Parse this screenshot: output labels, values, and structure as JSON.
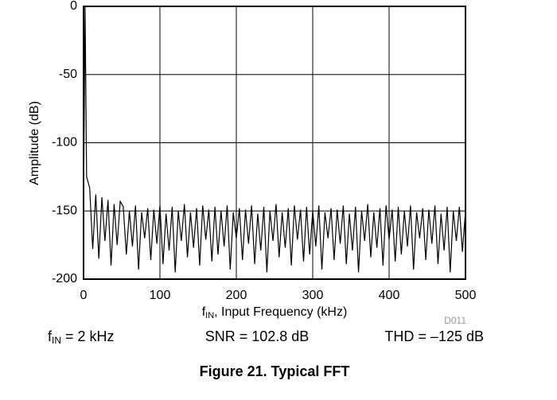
{
  "chart_data": {
    "type": "line",
    "y_label": "Amplitude (dB)",
    "x_label": {
      "text": "f",
      "subscript": "IN",
      "rest": ", Input Frequency (kHz)"
    },
    "figure_id": "D011",
    "annotations": [
      {
        "text": "f",
        "subscript": "IN",
        "rest": " = 2 kHz"
      },
      {
        "text": "SNR = 102.8 dB"
      },
      {
        "text": "THD = –125 dB"
      }
    ],
    "caption": "Figure 21. Typical FFT",
    "xlim": [
      0,
      500
    ],
    "xticks": [
      0,
      100,
      200,
      300,
      400,
      500
    ],
    "ylim": [
      -200,
      0
    ],
    "yticks": [
      0,
      -50,
      -100,
      -150,
      -200
    ],
    "grid": true,
    "x": [
      0,
      2,
      4,
      8,
      12,
      16,
      20,
      24,
      28,
      32,
      36,
      40,
      44,
      48,
      52,
      56,
      60,
      64,
      68,
      72,
      76,
      80,
      84,
      88,
      92,
      96,
      100,
      104,
      108,
      112,
      116,
      120,
      124,
      128,
      132,
      136,
      140,
      144,
      148,
      152,
      156,
      160,
      164,
      168,
      172,
      176,
      180,
      184,
      188,
      192,
      196,
      200,
      204,
      208,
      212,
      216,
      220,
      224,
      228,
      232,
      236,
      240,
      244,
      248,
      252,
      256,
      260,
      264,
      268,
      272,
      276,
      280,
      284,
      288,
      292,
      296,
      300,
      304,
      308,
      312,
      316,
      320,
      324,
      328,
      332,
      336,
      340,
      344,
      348,
      352,
      356,
      360,
      364,
      368,
      372,
      376,
      380,
      384,
      388,
      392,
      396,
      400,
      404,
      408,
      412,
      416,
      420,
      424,
      428,
      432,
      436,
      440,
      444,
      448,
      452,
      456,
      460,
      464,
      468,
      472,
      476,
      480,
      484,
      488,
      492,
      496,
      500
    ],
    "series": [
      {
        "color": "#000000",
        "values": [
          -150,
          0,
          -125,
          -133,
          -178,
          -138,
          -185,
          -140,
          -172,
          -142,
          -190,
          -145,
          -175,
          -143,
          -147,
          -182,
          -150,
          -176,
          -146,
          -193,
          -151,
          -170,
          -148,
          -186,
          -149,
          -174,
          -146,
          -189,
          -152,
          -179,
          -147,
          -195,
          -150,
          -172,
          -145,
          -184,
          -151,
          -177,
          -148,
          -190,
          -146,
          -171,
          -149,
          -187,
          -147,
          -182,
          -150,
          -176,
          -146,
          -193,
          -151,
          -170,
          -148,
          -186,
          -149,
          -174,
          -146,
          -189,
          -152,
          -179,
          -147,
          -195,
          -150,
          -172,
          -145,
          -184,
          -151,
          -177,
          -148,
          -190,
          -146,
          -171,
          -149,
          -187,
          -147,
          -182,
          -150,
          -176,
          -146,
          -193,
          -151,
          -170,
          -148,
          -186,
          -149,
          -174,
          -146,
          -189,
          -152,
          -179,
          -147,
          -195,
          -150,
          -172,
          -145,
          -184,
          -151,
          -177,
          -148,
          -190,
          -146,
          -171,
          -149,
          -187,
          -147,
          -182,
          -150,
          -176,
          -146,
          -193,
          -151,
          -170,
          -148,
          -186,
          -149,
          -174,
          -146,
          -189,
          -152,
          -179,
          -147,
          -195,
          -150,
          -172,
          -147,
          -180,
          -150
        ]
      }
    ]
  }
}
